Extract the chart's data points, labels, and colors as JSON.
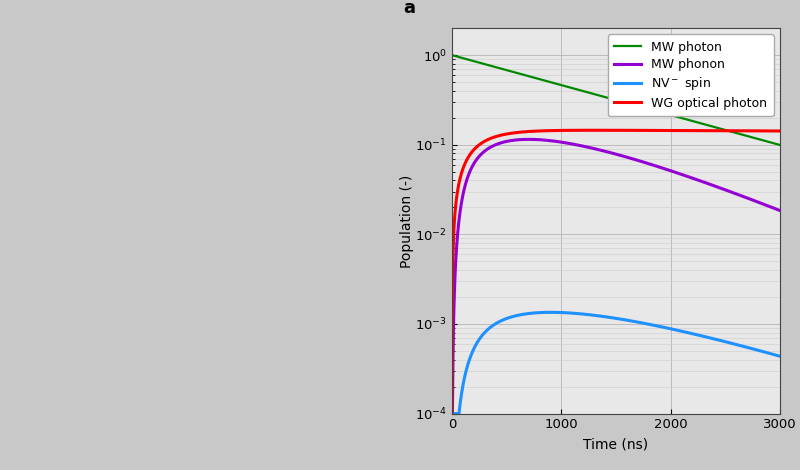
{
  "title": "a",
  "xlabel": "Time (ns)",
  "ylabel": "Population (-)",
  "xlim": [
    0,
    3000
  ],
  "legend": [
    {
      "label": "MW photon",
      "color": "#008800",
      "lw": 1.6
    },
    {
      "label": "MW phonon",
      "color": "#9400D3",
      "lw": 2.2
    },
    {
      "label": "NV$^-$ spin",
      "color": "#1E90FF",
      "lw": 2.2
    },
    {
      "label": "WG optical photon",
      "color": "#FF0000",
      "lw": 2.2
    }
  ],
  "bg_left": "#d8d8d8",
  "bg_fig": "#c8c8c8",
  "panel_bg": "#e8e8e8",
  "grid_color": "#b8b8b8",
  "curve_params": {
    "mw_photon_tau": 1300,
    "mw_phonon_rise": 80,
    "mw_phonon_decay": 700,
    "mw_phonon_scale": 0.115,
    "nv_rise": 120,
    "nv_decay": 900,
    "nv_scale": 0.00135,
    "wg_rise": 220,
    "wg_sat": 0.148
  }
}
